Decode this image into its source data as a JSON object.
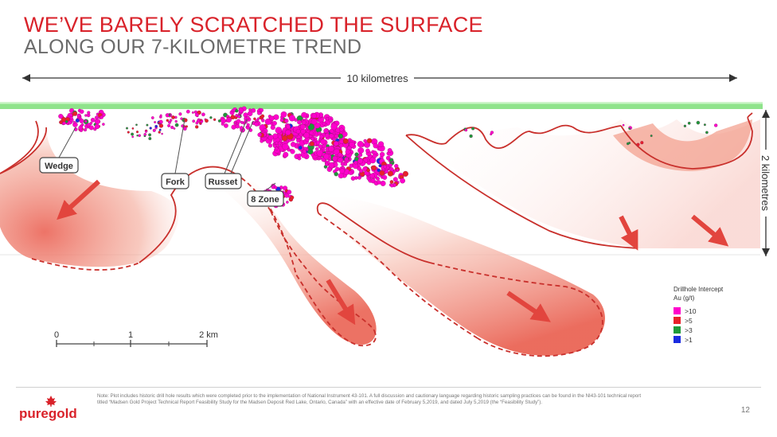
{
  "slide": {
    "title_line1": "WE’VE BARELY SCRATCHED THE SURFACE",
    "title_line2": "ALONG OUR 7-KILOMETRE TREND",
    "page_number": "12"
  },
  "diagram": {
    "horizontal_dimension": "10 kilometres",
    "vertical_dimension": "2 kilometres",
    "zones": [
      "Wedge",
      "Fork",
      "Russet",
      "8 Zone"
    ],
    "scale_bar": {
      "ticks": [
        "0",
        "1",
        "2 km"
      ]
    },
    "legend": {
      "title_line1": "Drillhole Intercept",
      "title_line2": "Au (g/t)",
      "items": [
        {
          "label": ">10",
          "color": "#ff00cc"
        },
        {
          "label": ">5",
          "color": "#e8212a"
        },
        {
          "label": ">3",
          "color": "#1e9a3a"
        },
        {
          "label": ">1",
          "color": "#1a2be0"
        }
      ]
    },
    "colors": {
      "surface": "#8fe38b",
      "envelope": "#e9574e",
      "arrow": "#e2453e"
    }
  },
  "footer": {
    "logo_text": "puregold",
    "note": "Note: Plot includes historic drill hole results which were completed prior to the implementation of National Instrument 43-101. A full discussion and cautionary language regarding historic sampling practices can be found in the NI43-101 technical report titled “Madsen Gold Project Technical Report Feasibility Study for the Madsen Deposit Red Lake, Ontario, Canada” with an effective date of February 5,2019, and dated July 5,2019 (the “Feasibility Study”)."
  }
}
